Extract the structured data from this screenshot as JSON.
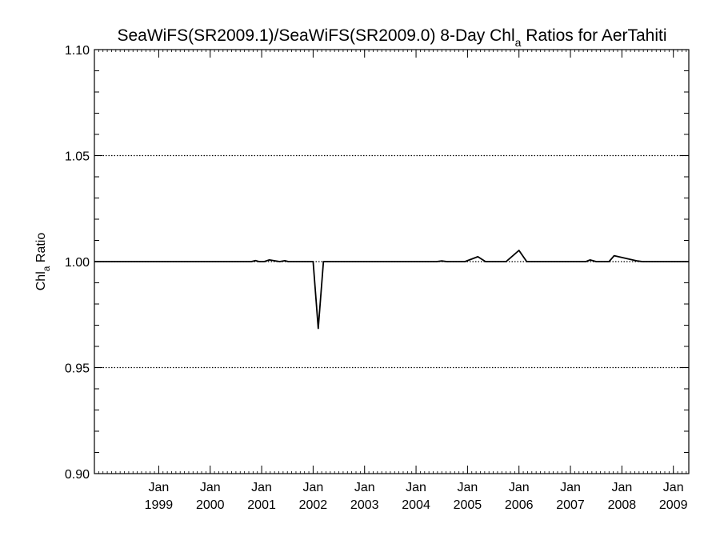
{
  "chart_data": {
    "type": "line",
    "title_parts": {
      "main": "SeaWiFS(SR2009.1)/SeaWiFS(SR2009.0) 8-Day Chl",
      "sub": "a",
      "tail": " Ratios for AerTahiti"
    },
    "ylabel_parts": {
      "main": "Chl",
      "sub": "a",
      "tail": " Ratio"
    },
    "ylim": [
      0.9,
      1.1
    ],
    "y_ticks": [
      "0.90",
      "0.95",
      "1.00",
      "1.05",
      "1.10"
    ],
    "y_gridlines": [
      0.95,
      1.0,
      1.05
    ],
    "grid_style": "dotted",
    "xlim": [
      1997.75,
      2009.3
    ],
    "x_ticks": [
      {
        "month": "Jan",
        "year": "1999"
      },
      {
        "month": "Jan",
        "year": "2000"
      },
      {
        "month": "Jan",
        "year": "2001"
      },
      {
        "month": "Jan",
        "year": "2002"
      },
      {
        "month": "Jan",
        "year": "2003"
      },
      {
        "month": "Jan",
        "year": "2004"
      },
      {
        "month": "Jan",
        "year": "2005"
      },
      {
        "month": "Jan",
        "year": "2006"
      },
      {
        "month": "Jan",
        "year": "2007"
      },
      {
        "month": "Jan",
        "year": "2008"
      },
      {
        "month": "Jan",
        "year": "2009"
      }
    ],
    "series": [
      {
        "color": "#000000",
        "x": [
          1997.75,
          2000.8,
          2000.88,
          2000.95,
          2001.05,
          2001.15,
          2001.35,
          2001.45,
          2001.52,
          2002.0,
          2002.1,
          2002.2,
          2004.4,
          2004.5,
          2004.6,
          2004.95,
          2005.2,
          2005.35,
          2005.75,
          2006.0,
          2006.15,
          2007.3,
          2007.38,
          2007.5,
          2007.75,
          2007.85,
          2008.3,
          2008.4,
          2009.3
        ],
        "y": [
          1.0,
          1.0,
          1.0005,
          1.0,
          1.0,
          1.0008,
          1.0,
          1.0004,
          1.0,
          1.0,
          0.9685,
          1.0,
          1.0,
          1.0003,
          1.0,
          1.0,
          1.0023,
          1.0,
          1.0,
          1.0053,
          1.0,
          1.0,
          1.0008,
          1.0,
          1.0,
          1.0028,
          1.0003,
          1.0,
          1.0
        ]
      }
    ]
  }
}
